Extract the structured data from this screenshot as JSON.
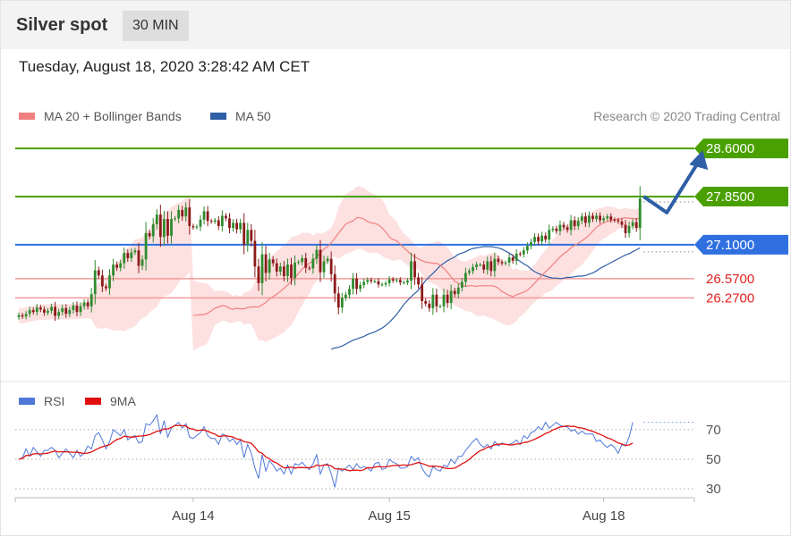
{
  "header": {
    "title": "Silver spot",
    "timeframe": "30 MIN"
  },
  "datetime": "Tuesday, August 18, 2020 3:28:42 AM CET",
  "legend": {
    "ma20": {
      "label": "MA 20 + Bollinger Bands",
      "color": "#f08080"
    },
    "ma50": {
      "label": "MA 50",
      "color": "#2f5fa6"
    },
    "credit": "Research © 2020 Trading Central"
  },
  "rsi_legend": {
    "rsi": {
      "label": "RSI",
      "color": "#4f78d8"
    },
    "ma9": {
      "label": "9MA",
      "color": "#e01010"
    }
  },
  "colors": {
    "up": "#2e8b2e",
    "down": "#8b1a1a",
    "green_level": "#4aa000",
    "blue_level": "#2f6fe0",
    "red_level": "#e02020",
    "arrow": "#2f5fa6",
    "band": "#fde0e0"
  },
  "chart_data": [
    {
      "type": "candlestick",
      "ylim": [
        25.05,
        28.95
      ],
      "x_ticks": [
        "Aug 14",
        "Aug 15",
        "Aug 18"
      ],
      "levels": [
        {
          "label": "28.6000",
          "value": 28.6,
          "kind": "resistance",
          "color": "green"
        },
        {
          "label": "27.8500",
          "value": 27.85,
          "kind": "resistance",
          "color": "green"
        },
        {
          "label": "27.1000",
          "value": 27.1,
          "kind": "pivot",
          "color": "blue"
        },
        {
          "label": "26.5700",
          "value": 26.57,
          "kind": "support",
          "color": "red"
        },
        {
          "label": "26.2700",
          "value": 26.27,
          "kind": "support",
          "color": "red"
        }
      ],
      "close": [
        26.0,
        25.98,
        26.02,
        26.08,
        26.05,
        26.12,
        26.09,
        26.04,
        26.07,
        26.13,
        25.99,
        26.05,
        26.11,
        26.02,
        26.08,
        26.15,
        26.05,
        26.14,
        26.2,
        26.14,
        26.33,
        26.7,
        26.62,
        26.45,
        26.42,
        26.62,
        26.79,
        26.74,
        26.81,
        26.97,
        26.89,
        26.98,
        27.01,
        26.77,
        26.87,
        27.28,
        27.23,
        27.42,
        27.57,
        27.22,
        27.5,
        27.24,
        27.5,
        27.51,
        27.64,
        27.54,
        27.68,
        27.39,
        27.37,
        27.38,
        27.49,
        27.62,
        27.47,
        27.46,
        27.48,
        27.39,
        27.55,
        27.51,
        27.36,
        27.44,
        27.34,
        27.44,
        27.1,
        27.33,
        27.16,
        26.76,
        26.5,
        26.95,
        26.66,
        26.87,
        26.81,
        26.68,
        26.76,
        26.61,
        26.79,
        26.58,
        26.82,
        26.83,
        26.89,
        26.74,
        26.73,
        26.88,
        27.02,
        26.67,
        26.84,
        26.88,
        26.64,
        26.34,
        26.12,
        26.27,
        26.32,
        26.41,
        26.57,
        26.41,
        26.47,
        26.52,
        26.55,
        26.53,
        26.53,
        26.48,
        26.48,
        26.5,
        26.56,
        26.54,
        26.55,
        26.51,
        26.51,
        26.54,
        26.84,
        26.59,
        26.48,
        26.22,
        26.18,
        26.11,
        26.32,
        26.14,
        26.14,
        26.32,
        26.19,
        26.38,
        26.33,
        26.43,
        26.52,
        26.66,
        26.69,
        26.75,
        26.79,
        26.79,
        26.71,
        26.84,
        26.69,
        26.88,
        26.83,
        26.81,
        26.82,
        26.9,
        26.85,
        26.96,
        26.95,
        27.01,
        27.08,
        27.14,
        27.22,
        27.15,
        27.24,
        27.18,
        27.33,
        27.35,
        27.31,
        27.41,
        27.37,
        27.33,
        27.48,
        27.39,
        27.47,
        27.54,
        27.44,
        27.55,
        27.5,
        27.55,
        27.48,
        27.51,
        27.54,
        27.49,
        27.48,
        27.46,
        27.41,
        27.28,
        27.39,
        27.45,
        27.36,
        27.82
      ],
      "ma20": [
        26.0,
        26.0,
        26.01,
        26.01,
        26.03,
        26.07,
        26.11,
        26.13,
        26.15,
        26.14,
        26.11,
        26.09,
        26.11,
        26.1,
        26.1,
        26.12,
        26.13,
        26.13,
        26.13,
        26.16,
        26.2,
        26.25,
        26.29,
        26.33,
        26.37,
        26.42,
        26.47,
        26.53,
        26.59,
        26.65,
        26.72,
        26.77,
        26.81,
        26.85,
        26.91,
        26.97,
        27.03,
        27.07,
        27.13,
        27.2,
        27.28,
        27.35,
        27.42,
        27.45,
        27.47,
        27.52,
        27.52,
        27.5,
        27.46,
        27.44,
        27.43,
        27.41,
        27.36,
        27.3,
        27.22,
        27.18,
        27.16,
        27.11,
        27.05,
        27.0,
        26.95,
        26.91,
        26.88,
        26.85,
        26.83,
        26.82,
        26.81,
        26.81,
        26.78,
        26.73,
        26.67,
        26.6,
        26.53,
        26.5,
        26.47,
        26.45,
        26.46,
        26.46,
        26.45,
        26.46,
        26.46,
        26.46,
        26.46,
        26.45,
        26.42,
        26.37,
        26.34,
        26.31,
        26.29,
        26.32,
        26.34,
        26.36,
        26.39,
        26.44,
        26.5,
        26.56,
        26.62,
        26.68,
        26.73,
        26.79,
        26.85,
        26.91,
        26.96,
        27.0,
        27.05,
        27.09,
        27.12,
        27.16,
        27.2,
        27.25,
        27.31,
        27.37,
        27.41,
        27.44,
        27.46,
        27.48,
        27.49,
        27.5,
        27.51,
        27.52,
        27.51,
        27.51,
        27.5,
        27.52
      ],
      "ma50": [
        25.47,
        25.49,
        25.5,
        25.52,
        25.55,
        25.58,
        25.61,
        25.63,
        25.65,
        25.67,
        25.7,
        25.72,
        25.74,
        25.77,
        25.8,
        25.84,
        25.89,
        25.95,
        26.01,
        26.09,
        26.17,
        26.23,
        26.29,
        26.34,
        26.39,
        26.47,
        26.54,
        26.6,
        26.65,
        26.71,
        26.77,
        26.81,
        26.85,
        26.88,
        26.91,
        26.95,
        26.97,
        26.99,
        27.02,
        27.04,
        27.05,
        27.06,
        27.07,
        27.07,
        27.07,
        27.06,
        27.05,
        27.03,
        27.0,
        26.97,
        26.93,
        26.88,
        26.84,
        26.8,
        26.77,
        26.72,
        26.68,
        26.65,
        26.63,
        26.61,
        26.59,
        26.58,
        26.58,
        26.57,
        26.58,
        26.59,
        26.59,
        26.6,
        26.61,
        26.61,
        26.62,
        26.64,
        26.66,
        26.69,
        26.73,
        26.76,
        26.79,
        26.82,
        26.85,
        26.88,
        26.91,
        26.94,
        26.96,
        26.99,
        27.02,
        27.05
      ],
      "projection": [
        27.85,
        27.6,
        28.6
      ]
    },
    {
      "type": "line",
      "ylim": [
        24,
        82
      ],
      "y_ticks": [
        70,
        50,
        30
      ],
      "rsi": [
        50,
        51,
        57,
        52,
        58,
        55,
        52,
        56,
        56,
        58,
        56,
        51,
        54,
        57,
        54,
        51,
        56,
        52,
        54,
        59,
        57,
        66,
        68,
        63,
        57,
        62,
        70,
        68,
        66,
        70,
        63,
        65,
        66,
        61,
        62,
        74,
        73,
        76,
        80,
        67,
        76,
        65,
        71,
        73,
        75,
        71,
        74,
        65,
        64,
        66,
        68,
        72,
        66,
        64,
        64,
        60,
        67,
        66,
        62,
        64,
        60,
        63,
        51,
        60,
        54,
        44,
        37,
        53,
        42,
        49,
        46,
        42,
        44,
        40,
        46,
        40,
        47,
        46,
        48,
        45,
        43,
        47,
        53,
        40,
        46,
        47,
        40,
        31,
        44,
        42,
        44,
        46,
        43,
        47,
        44,
        45,
        44,
        42,
        47,
        48,
        43,
        44,
        50,
        48,
        47,
        44,
        44,
        45,
        52,
        49,
        51,
        44,
        40,
        38,
        45,
        43,
        42,
        46,
        45,
        50,
        47,
        52,
        52,
        56,
        59,
        62,
        64,
        60,
        58,
        60,
        57,
        62,
        59,
        61,
        60,
        60,
        61,
        63,
        60,
        66,
        64,
        68,
        69,
        72,
        70,
        75,
        71,
        73,
        75,
        73,
        72,
        72,
        69,
        70,
        67,
        69,
        67,
        67,
        67,
        62,
        63,
        60,
        58,
        60,
        58,
        54,
        60,
        59,
        65,
        75
      ]
    }
  ]
}
